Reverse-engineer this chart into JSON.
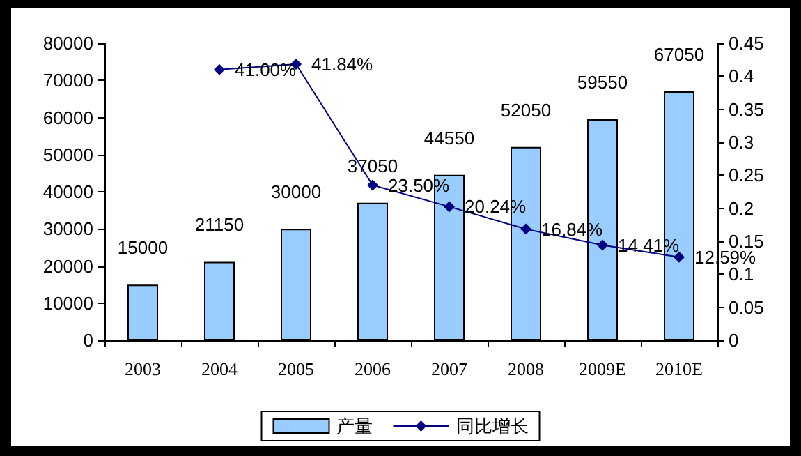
{
  "chart_data": {
    "type": "bar",
    "categories": [
      "2003",
      "2004",
      "2005",
      "2006",
      "2007",
      "2008",
      "2009E",
      "2010E"
    ],
    "series": [
      {
        "name": "产量",
        "color": "#99ccff",
        "values": [
          15000,
          21150,
          30000,
          37050,
          44550,
          52050,
          59550,
          67050
        ]
      },
      {
        "name": "同比增长",
        "type": "line",
        "axis": "y2",
        "color": "#000080",
        "values": [
          null,
          0.41,
          0.4184,
          0.235,
          0.2024,
          0.1684,
          0.1441,
          0.1259
        ],
        "value_labels": [
          null,
          "41.00%",
          "41.84%",
          "23.50%",
          "20.24%",
          "16.84%",
          "14.41%",
          "12.59%"
        ]
      }
    ],
    "ylim": [
      0,
      80000
    ],
    "yticks": [
      0,
      10000,
      20000,
      30000,
      40000,
      50000,
      60000,
      70000,
      80000
    ],
    "y2lim": [
      0,
      0.45
    ],
    "y2ticks": [
      0,
      0.05,
      0.1,
      0.15,
      0.2,
      0.25,
      0.3,
      0.35,
      0.4,
      0.45
    ],
    "data_labels": true,
    "grid": false,
    "legend": "bottom",
    "marker": "diamond",
    "line_style": "solid"
  }
}
